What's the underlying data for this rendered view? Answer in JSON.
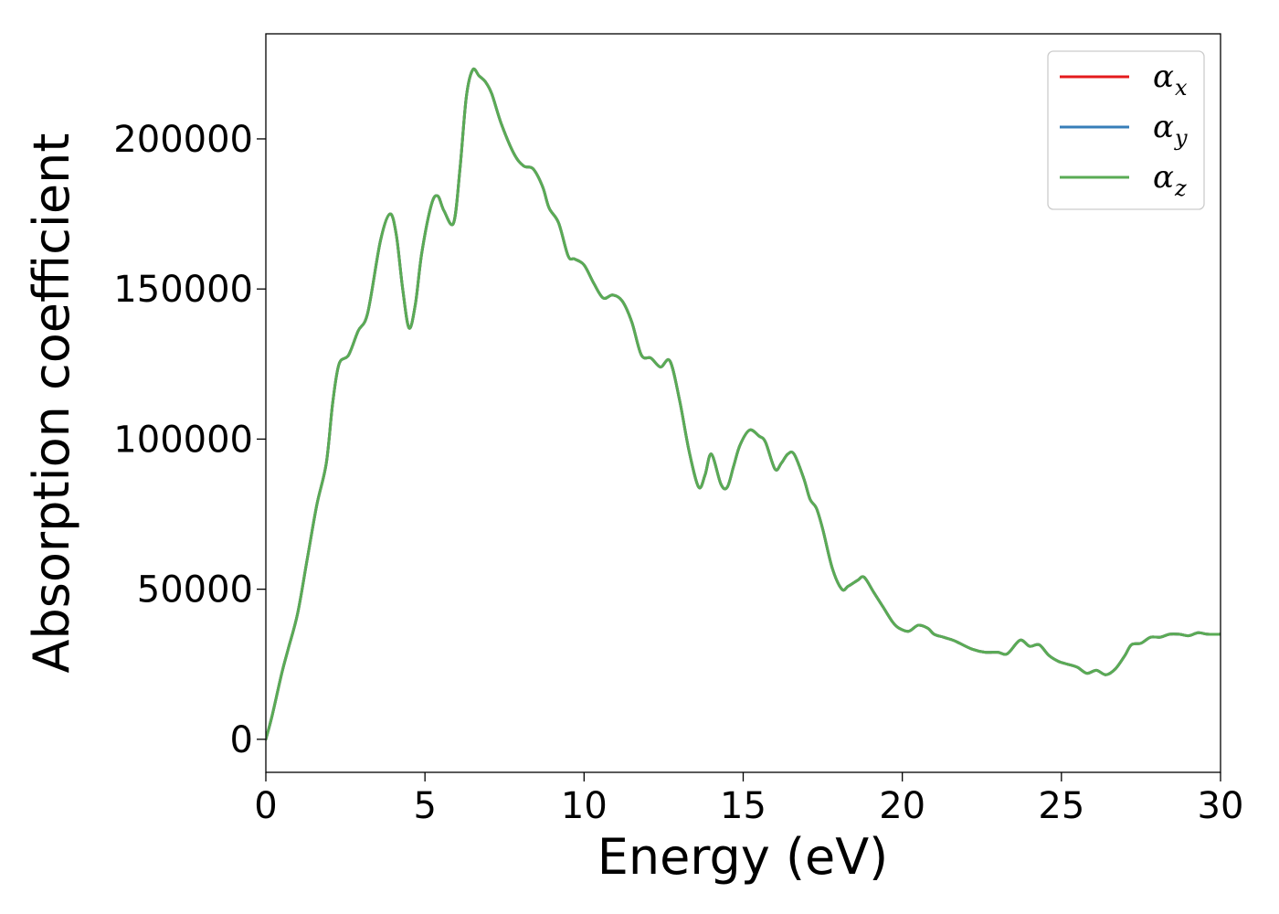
{
  "chart_data": {
    "type": "line",
    "title": "",
    "xlabel": "Energy (eV)",
    "ylabel": "Absorption coefficient",
    "xlim": [
      0,
      30
    ],
    "ylim": [
      -11000,
      235000
    ],
    "xticks": [
      0,
      5,
      10,
      15,
      20,
      25,
      30
    ],
    "xtick_labels": [
      "0",
      "5",
      "10",
      "15",
      "20",
      "25",
      "30"
    ],
    "yticks": [
      0,
      50000,
      100000,
      150000,
      200000
    ],
    "ytick_labels": [
      "0",
      "50000",
      "100000",
      "150000",
      "200000"
    ],
    "grid": false,
    "legend": {
      "placement": "top-right",
      "entries": [
        {
          "symbol": "α",
          "sub": "x",
          "color": "#e41a1c"
        },
        {
          "symbol": "α",
          "sub": "y",
          "color": "#377eb8"
        },
        {
          "symbol": "α",
          "sub": "z",
          "color": "#5aab55"
        }
      ]
    },
    "x": [
      0,
      0.2,
      0.5,
      0.7,
      1.0,
      1.3,
      1.6,
      1.9,
      2.1,
      2.3,
      2.6,
      2.9,
      3.2,
      3.6,
      3.9,
      4.1,
      4.3,
      4.5,
      4.7,
      4.9,
      5.2,
      5.4,
      5.6,
      5.9,
      6.1,
      6.3,
      6.5,
      6.7,
      6.9,
      7.1,
      7.4,
      7.8,
      8.1,
      8.4,
      8.7,
      8.9,
      9.2,
      9.5,
      9.7,
      10.0,
      10.3,
      10.6,
      10.9,
      11.2,
      11.5,
      11.8,
      12.1,
      12.4,
      12.7,
      13.0,
      13.3,
      13.6,
      13.8,
      14.0,
      14.3,
      14.5,
      14.7,
      14.9,
      15.2,
      15.5,
      15.7,
      16.0,
      16.2,
      16.4,
      16.6,
      16.9,
      17.1,
      17.3,
      17.5,
      17.8,
      18.1,
      18.3,
      18.6,
      18.8,
      19.1,
      19.4,
      19.7,
      19.9,
      20.2,
      20.5,
      20.8,
      21.0,
      21.3,
      21.6,
      21.8,
      22.2,
      22.6,
      23.0,
      23.3,
      23.7,
      24.0,
      24.3,
      24.6,
      24.9,
      25.2,
      25.5,
      25.8,
      26.1,
      26.4,
      26.7,
      27.0,
      27.2,
      27.5,
      27.8,
      28.1,
      28.4,
      28.7,
      29.0,
      29.3,
      29.6,
      30.0
    ],
    "series": [
      {
        "name": "αx",
        "color": "#e41a1c",
        "values": [
          0,
          8000,
          22000,
          30000,
          42000,
          60000,
          78000,
          92000,
          112000,
          125000,
          128000,
          136000,
          142000,
          166000,
          175000,
          168000,
          150000,
          137000,
          145000,
          162000,
          178000,
          181000,
          176000,
          172000,
          190000,
          214000,
          223000,
          221000,
          219000,
          215000,
          205000,
          195000,
          191000,
          190000,
          184000,
          177000,
          172000,
          161000,
          160000,
          158000,
          152000,
          147000,
          148000,
          146000,
          139000,
          128000,
          127000,
          124000,
          126000,
          113000,
          96000,
          84000,
          88000,
          95000,
          85000,
          84000,
          91000,
          98000,
          103000,
          101000,
          99000,
          90000,
          92000,
          95000,
          95000,
          87000,
          80000,
          77000,
          70000,
          57000,
          50000,
          51000,
          53000,
          54000,
          49000,
          44000,
          39000,
          37000,
          36000,
          38000,
          37000,
          35000,
          34000,
          33000,
          32000,
          30000,
          29000,
          29000,
          28500,
          33000,
          31000,
          31500,
          28000,
          26000,
          25000,
          24000,
          22000,
          23000,
          21500,
          23500,
          28000,
          31500,
          32000,
          34000,
          34000,
          35000,
          35000,
          34500,
          35500,
          35000,
          35000
        ]
      },
      {
        "name": "αy",
        "color": "#377eb8",
        "values": [
          0,
          8000,
          22000,
          30000,
          42000,
          60000,
          78000,
          92000,
          112000,
          125000,
          128000,
          136000,
          142000,
          166000,
          175000,
          168000,
          150000,
          137000,
          145000,
          162000,
          178000,
          181000,
          176000,
          172000,
          190000,
          214000,
          223000,
          221000,
          219000,
          215000,
          205000,
          195000,
          191000,
          190000,
          184000,
          177000,
          172000,
          161000,
          160000,
          158000,
          152000,
          147000,
          148000,
          146000,
          139000,
          128000,
          127000,
          124000,
          126000,
          113000,
          96000,
          84000,
          88000,
          95000,
          85000,
          84000,
          91000,
          98000,
          103000,
          101000,
          99000,
          90000,
          92000,
          95000,
          95000,
          87000,
          80000,
          77000,
          70000,
          57000,
          50000,
          51000,
          53000,
          54000,
          49000,
          44000,
          39000,
          37000,
          36000,
          38000,
          37000,
          35000,
          34000,
          33000,
          32000,
          30000,
          29000,
          29000,
          28500,
          33000,
          31000,
          31500,
          28000,
          26000,
          25000,
          24000,
          22000,
          23000,
          21500,
          23500,
          28000,
          31500,
          32000,
          34000,
          34000,
          35000,
          35000,
          34500,
          35500,
          35000,
          35000
        ]
      },
      {
        "name": "αz",
        "color": "#5aab55",
        "values": [
          0,
          8000,
          22000,
          30000,
          42000,
          60000,
          78000,
          92000,
          112000,
          125000,
          128000,
          136000,
          142000,
          166000,
          175000,
          168000,
          150000,
          137000,
          145000,
          162000,
          178000,
          181000,
          176000,
          172000,
          190000,
          214000,
          223000,
          221000,
          219000,
          215000,
          205000,
          195000,
          191000,
          190000,
          184000,
          177000,
          172000,
          161000,
          160000,
          158000,
          152000,
          147000,
          148000,
          146000,
          139000,
          128000,
          127000,
          124000,
          126000,
          113000,
          96000,
          84000,
          88000,
          95000,
          85000,
          84000,
          91000,
          98000,
          103000,
          101000,
          99000,
          90000,
          92000,
          95000,
          95000,
          87000,
          80000,
          77000,
          70000,
          57000,
          50000,
          51000,
          53000,
          54000,
          49000,
          44000,
          39000,
          37000,
          36000,
          38000,
          37000,
          35000,
          34000,
          33000,
          32000,
          30000,
          29000,
          29000,
          28500,
          33000,
          31000,
          31500,
          28000,
          26000,
          25000,
          24000,
          22000,
          23000,
          21500,
          23500,
          28000,
          31500,
          32000,
          34000,
          34000,
          35000,
          35000,
          34500,
          35500,
          35000,
          35000
        ]
      }
    ]
  }
}
